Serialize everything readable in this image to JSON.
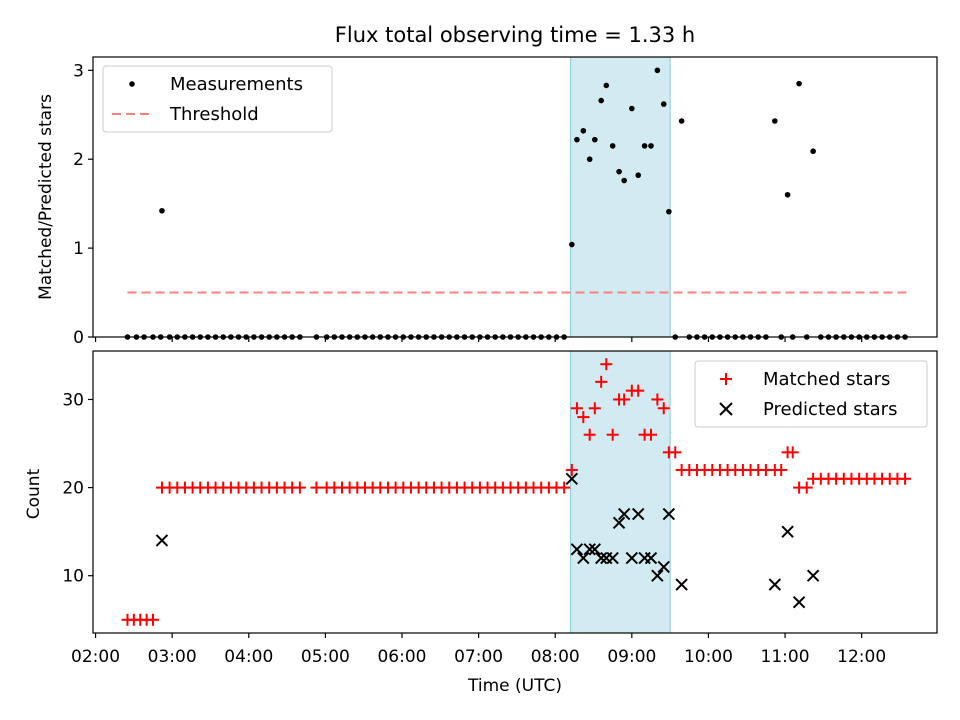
{
  "chart_data": {
    "title": "Flux total observing time = 1.33 h",
    "xlabel": "Time (UTC)",
    "x_tick_labels": [
      "02:00",
      "03:00",
      "04:00",
      "05:00",
      "06:00",
      "07:00",
      "08:00",
      "09:00",
      "10:00",
      "11:00",
      "12:00"
    ],
    "xlim": [
      "01:58",
      "12:59"
    ],
    "shaded_interval": {
      "start": "08:12",
      "end": "09:30",
      "color": "#add8e6"
    },
    "panels": [
      {
        "type": "scatter",
        "ylabel": "Matched/Predicted stars",
        "ylim": [
          0,
          3.15
        ],
        "y_ticks": [
          0,
          1,
          2,
          3
        ],
        "legend_position": "upper left",
        "grid": false,
        "series": [
          {
            "name": "Measurements",
            "marker": "dot",
            "color": "#000000",
            "points": [
              [
                "02:25",
                0
              ],
              [
                "02:32",
                0
              ],
              [
                "02:38",
                0
              ],
              [
                "02:45",
                0
              ],
              [
                "02:51",
                0.0
              ],
              [
                "02:52",
                1.42
              ],
              [
                "02:58",
                0
              ],
              [
                "03:04",
                0
              ],
              [
                "03:10",
                0
              ],
              [
                "03:16",
                0
              ],
              [
                "03:22",
                0
              ],
              [
                "03:28",
                0
              ],
              [
                "03:34",
                0
              ],
              [
                "03:40",
                0
              ],
              [
                "03:46",
                0
              ],
              [
                "03:52",
                0
              ],
              [
                "03:58",
                0
              ],
              [
                "04:04",
                0
              ],
              [
                "04:10",
                0
              ],
              [
                "04:16",
                0
              ],
              [
                "04:22",
                0
              ],
              [
                "04:28",
                0
              ],
              [
                "04:34",
                0
              ],
              [
                "04:40",
                0
              ],
              [
                "04:53",
                0
              ],
              [
                "05:01",
                0
              ],
              [
                "05:07",
                0
              ],
              [
                "05:13",
                0
              ],
              [
                "05:19",
                0
              ],
              [
                "05:25",
                0
              ],
              [
                "05:31",
                0
              ],
              [
                "05:37",
                0
              ],
              [
                "05:43",
                0
              ],
              [
                "05:49",
                0
              ],
              [
                "05:55",
                0
              ],
              [
                "06:01",
                0
              ],
              [
                "06:07",
                0
              ],
              [
                "06:13",
                0
              ],
              [
                "06:19",
                0
              ],
              [
                "06:25",
                0
              ],
              [
                "06:31",
                0
              ],
              [
                "06:37",
                0
              ],
              [
                "06:43",
                0
              ],
              [
                "06:49",
                0
              ],
              [
                "06:55",
                0
              ],
              [
                "07:01",
                0
              ],
              [
                "07:07",
                0
              ],
              [
                "07:13",
                0
              ],
              [
                "07:19",
                0
              ],
              [
                "07:25",
                0
              ],
              [
                "07:31",
                0
              ],
              [
                "07:37",
                0
              ],
              [
                "07:43",
                0
              ],
              [
                "07:49",
                0
              ],
              [
                "07:55",
                0
              ],
              [
                "08:01",
                0
              ],
              [
                "08:07",
                0
              ],
              [
                "08:13",
                1.04
              ],
              [
                "08:17",
                2.22
              ],
              [
                "08:22",
                2.32
              ],
              [
                "08:27",
                2.0
              ],
              [
                "08:31",
                2.22
              ],
              [
                "08:36",
                2.66
              ],
              [
                "08:40",
                2.83
              ],
              [
                "08:45",
                2.15
              ],
              [
                "08:50",
                1.86
              ],
              [
                "08:54",
                1.76
              ],
              [
                "09:00",
                2.57
              ],
              [
                "09:05",
                1.82
              ],
              [
                "09:10",
                2.15
              ],
              [
                "09:15",
                2.15
              ],
              [
                "09:20",
                3.0
              ],
              [
                "09:25",
                2.62
              ],
              [
                "09:29",
                1.41
              ],
              [
                "09:34",
                0
              ],
              [
                "09:39",
                2.43
              ],
              [
                "09:45",
                0
              ],
              [
                "09:51",
                0
              ],
              [
                "09:57",
                0
              ],
              [
                "10:03",
                0
              ],
              [
                "10:09",
                0
              ],
              [
                "10:15",
                0
              ],
              [
                "10:21",
                0
              ],
              [
                "10:27",
                0
              ],
              [
                "10:33",
                0
              ],
              [
                "10:39",
                0
              ],
              [
                "10:45",
                0
              ],
              [
                "10:52",
                2.43
              ],
              [
                "10:57",
                0
              ],
              [
                "11:02",
                1.6
              ],
              [
                "11:06",
                0
              ],
              [
                "11:11",
                2.85
              ],
              [
                "11:17",
                0
              ],
              [
                "11:22",
                2.09
              ],
              [
                "11:28",
                0
              ],
              [
                "11:34",
                0
              ],
              [
                "11:40",
                0
              ],
              [
                "11:46",
                0
              ],
              [
                "11:52",
                0
              ],
              [
                "11:58",
                0
              ],
              [
                "12:04",
                0
              ],
              [
                "12:10",
                0
              ],
              [
                "12:16",
                0
              ],
              [
                "12:22",
                0
              ],
              [
                "12:28",
                0
              ],
              [
                "12:34",
                0
              ]
            ]
          },
          {
            "name": "Threshold",
            "type": "line",
            "style": "dashed",
            "color": "#ff7f7f",
            "points": [
              [
                "02:25",
                0.5
              ],
              [
                "12:35",
                0.5
              ]
            ]
          }
        ]
      },
      {
        "type": "scatter",
        "ylabel": "Count",
        "ylim": [
          3.5,
          35.5
        ],
        "y_ticks": [
          10,
          20,
          30
        ],
        "legend_position": "upper right",
        "grid": false,
        "series": [
          {
            "name": "Matched stars",
            "marker": "plus",
            "color": "#ff0000",
            "points": [
              [
                "02:25",
                5
              ],
              [
                "02:30",
                5
              ],
              [
                "02:35",
                5
              ],
              [
                "02:40",
                5
              ],
              [
                "02:45",
                5
              ],
              [
                "02:52",
                20
              ],
              [
                "02:58",
                20
              ],
              [
                "03:04",
                20
              ],
              [
                "03:10",
                20
              ],
              [
                "03:16",
                20
              ],
              [
                "03:22",
                20
              ],
              [
                "03:28",
                20
              ],
              [
                "03:34",
                20
              ],
              [
                "03:40",
                20
              ],
              [
                "03:46",
                20
              ],
              [
                "03:52",
                20
              ],
              [
                "03:58",
                20
              ],
              [
                "04:04",
                20
              ],
              [
                "04:10",
                20
              ],
              [
                "04:16",
                20
              ],
              [
                "04:22",
                20
              ],
              [
                "04:28",
                20
              ],
              [
                "04:34",
                20
              ],
              [
                "04:40",
                20
              ],
              [
                "04:53",
                20
              ],
              [
                "05:01",
                20
              ],
              [
                "05:07",
                20
              ],
              [
                "05:13",
                20
              ],
              [
                "05:19",
                20
              ],
              [
                "05:25",
                20
              ],
              [
                "05:31",
                20
              ],
              [
                "05:37",
                20
              ],
              [
                "05:43",
                20
              ],
              [
                "05:49",
                20
              ],
              [
                "05:55",
                20
              ],
              [
                "06:01",
                20
              ],
              [
                "06:07",
                20
              ],
              [
                "06:13",
                20
              ],
              [
                "06:19",
                20
              ],
              [
                "06:25",
                20
              ],
              [
                "06:31",
                20
              ],
              [
                "06:37",
                20
              ],
              [
                "06:43",
                20
              ],
              [
                "06:49",
                20
              ],
              [
                "06:55",
                20
              ],
              [
                "07:01",
                20
              ],
              [
                "07:07",
                20
              ],
              [
                "07:13",
                20
              ],
              [
                "07:19",
                20
              ],
              [
                "07:25",
                20
              ],
              [
                "07:31",
                20
              ],
              [
                "07:37",
                20
              ],
              [
                "07:43",
                20
              ],
              [
                "07:49",
                20
              ],
              [
                "07:55",
                20
              ],
              [
                "08:01",
                20
              ],
              [
                "08:07",
                20
              ],
              [
                "08:13",
                22
              ],
              [
                "08:17",
                29
              ],
              [
                "08:22",
                28
              ],
              [
                "08:27",
                26
              ],
              [
                "08:31",
                29
              ],
              [
                "08:36",
                32
              ],
              [
                "08:40",
                34
              ],
              [
                "08:45",
                26
              ],
              [
                "08:50",
                30
              ],
              [
                "08:54",
                30
              ],
              [
                "09:00",
                31
              ],
              [
                "09:05",
                31
              ],
              [
                "09:10",
                26
              ],
              [
                "09:15",
                26
              ],
              [
                "09:20",
                30
              ],
              [
                "09:25",
                29
              ],
              [
                "09:29",
                24
              ],
              [
                "09:34",
                24
              ],
              [
                "09:39",
                22
              ],
              [
                "09:45",
                22
              ],
              [
                "09:51",
                22
              ],
              [
                "09:57",
                22
              ],
              [
                "10:03",
                22
              ],
              [
                "10:09",
                22
              ],
              [
                "10:15",
                22
              ],
              [
                "10:21",
                22
              ],
              [
                "10:27",
                22
              ],
              [
                "10:33",
                22
              ],
              [
                "10:39",
                22
              ],
              [
                "10:45",
                22
              ],
              [
                "10:52",
                22
              ],
              [
                "10:57",
                22
              ],
              [
                "11:02",
                24
              ],
              [
                "11:06",
                24
              ],
              [
                "11:11",
                20
              ],
              [
                "11:17",
                20
              ],
              [
                "11:22",
                21
              ],
              [
                "11:28",
                21
              ],
              [
                "11:34",
                21
              ],
              [
                "11:40",
                21
              ],
              [
                "11:46",
                21
              ],
              [
                "11:52",
                21
              ],
              [
                "11:58",
                21
              ],
              [
                "12:04",
                21
              ],
              [
                "12:10",
                21
              ],
              [
                "12:16",
                21
              ],
              [
                "12:22",
                21
              ],
              [
                "12:28",
                21
              ],
              [
                "12:34",
                21
              ]
            ]
          },
          {
            "name": "Predicted stars",
            "marker": "x",
            "color": "#000000",
            "points": [
              [
                "02:52",
                14
              ],
              [
                "08:13",
                21
              ],
              [
                "08:17",
                13
              ],
              [
                "08:22",
                12
              ],
              [
                "08:27",
                13
              ],
              [
                "08:31",
                13
              ],
              [
                "08:36",
                12
              ],
              [
                "08:40",
                12
              ],
              [
                "08:45",
                12
              ],
              [
                "08:50",
                16
              ],
              [
                "08:54",
                17
              ],
              [
                "09:00",
                12
              ],
              [
                "09:05",
                17
              ],
              [
                "09:10",
                12
              ],
              [
                "09:15",
                12
              ],
              [
                "09:20",
                10
              ],
              [
                "09:25",
                11
              ],
              [
                "09:29",
                17
              ],
              [
                "09:39",
                9
              ],
              [
                "10:52",
                9
              ],
              [
                "11:02",
                15
              ],
              [
                "11:11",
                7
              ],
              [
                "11:22",
                10
              ]
            ]
          }
        ]
      }
    ]
  }
}
